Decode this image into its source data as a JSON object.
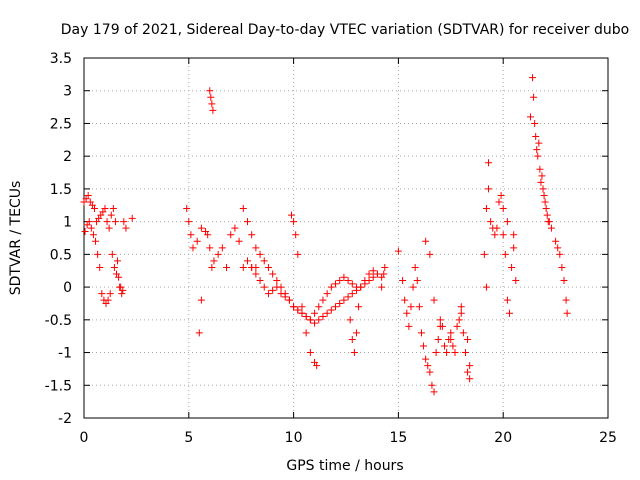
{
  "chart_data": {
    "type": "scatter",
    "title": "Day 179 of 2021, Sidereal Day-to-day VTEC variation (SDTVAR) for receiver dubo",
    "xlabel": "GPS time / hours",
    "ylabel": "SDTVAR / TECUs",
    "xlim": [
      0,
      25
    ],
    "ylim": [
      -2,
      3.5
    ],
    "xticks": [
      "0",
      "5",
      "10",
      "15",
      "20",
      "25"
    ],
    "yticks": [
      "-2",
      "-1.5",
      "-1",
      "-0.5",
      "0",
      "0.5",
      "1",
      "1.5",
      "2",
      "2.5",
      "3",
      "3.5"
    ],
    "grid": true,
    "marker": "+",
    "series": [
      {
        "name": "SDTVAR",
        "color": "#ff0000",
        "x": [
          0.0,
          0.1,
          0.2,
          0.3,
          0.4,
          0.5,
          0.6,
          0.7,
          0.8,
          0.9,
          1.0,
          1.1,
          1.2,
          1.3,
          1.4,
          1.5,
          1.6,
          1.7,
          1.8,
          1.9,
          2.0,
          2.3,
          0.05,
          0.15,
          0.25,
          0.35,
          0.45,
          0.55,
          0.65,
          0.75,
          0.85,
          0.95,
          1.05,
          1.15,
          1.25,
          1.35,
          1.45,
          1.55,
          1.65,
          1.75,
          1.85,
          4.9,
          5.0,
          5.1,
          5.2,
          5.4,
          5.6,
          5.8,
          5.9,
          6.0,
          6.1,
          6.2,
          6.4,
          6.6,
          6.8,
          7.0,
          7.2,
          7.4,
          7.6,
          7.8,
          8.0,
          8.2,
          5.5,
          5.6,
          6.0,
          6.05,
          6.1,
          6.15,
          8.0,
          8.2,
          8.4,
          8.6,
          8.8,
          9.0,
          9.2,
          9.4,
          9.6,
          9.8,
          10.0,
          10.2,
          10.4,
          10.6,
          10.8,
          11.0,
          11.2,
          11.4,
          11.6,
          11.8,
          12.0,
          12.2,
          12.4,
          12.6,
          12.8,
          13.0,
          13.2,
          13.4,
          13.6,
          13.8,
          14.0,
          14.2,
          7.6,
          7.8,
          8.0,
          8.2,
          8.4,
          8.6,
          8.8,
          9.0,
          9.2,
          9.4,
          9.6,
          9.8,
          10.0,
          10.2,
          10.4,
          10.6,
          10.8,
          11.0,
          11.2,
          11.4,
          11.6,
          11.8,
          12.0,
          12.2,
          12.4,
          12.6,
          12.8,
          13.0,
          13.2,
          13.4,
          13.6,
          13.8,
          14.0,
          9.9,
          10.0,
          10.1,
          10.2,
          10.4,
          10.6,
          10.8,
          11.0,
          11.1,
          12.7,
          12.8,
          12.9,
          13.0,
          13.1,
          14.2,
          14.3,
          14.35,
          15.0,
          15.2,
          15.3,
          15.4,
          15.5,
          15.6,
          15.7,
          15.8,
          15.9,
          16.0,
          16.1,
          16.2,
          16.3,
          16.4,
          16.5,
          16.6,
          16.7,
          16.8,
          16.9,
          17.0,
          17.1,
          17.2,
          17.3,
          17.4,
          17.5,
          17.6,
          17.7,
          17.8,
          17.9,
          18.0,
          18.1,
          18.2,
          18.3,
          18.4,
          16.3,
          16.5,
          16.7,
          17.0,
          17.5,
          18.0,
          18.3,
          18.4,
          19.1,
          19.2,
          19.3,
          19.4,
          19.5,
          19.6,
          19.7,
          19.8,
          19.9,
          20.0,
          20.1,
          20.2,
          20.3,
          20.4,
          20.5,
          20.6,
          19.2,
          19.3,
          20.0,
          20.2,
          20.5,
          21.3,
          21.4,
          21.45,
          21.5,
          21.55,
          21.6,
          21.65,
          21.7,
          21.75,
          21.8,
          21.85,
          21.9,
          21.95,
          22.0,
          22.05,
          22.1,
          22.15,
          22.2,
          22.3,
          22.5,
          22.6,
          22.7,
          22.8,
          22.9,
          23.0,
          23.05
        ],
        "y": [
          1.3,
          1.35,
          1.4,
          1.3,
          1.25,
          1.2,
          1.0,
          1.05,
          1.1,
          1.15,
          1.2,
          1.0,
          0.9,
          1.1,
          1.2,
          1.0,
          0.4,
          0.0,
          -0.1,
          1.0,
          0.9,
          1.05,
          0.85,
          0.95,
          1.0,
          0.9,
          0.8,
          0.7,
          0.5,
          0.3,
          -0.1,
          -0.2,
          -0.25,
          -0.2,
          -0.1,
          0.5,
          0.3,
          0.2,
          0.15,
          0.0,
          -0.05,
          1.2,
          1.0,
          0.8,
          0.6,
          0.7,
          0.9,
          0.85,
          0.8,
          0.6,
          0.3,
          0.4,
          0.5,
          0.6,
          0.3,
          0.8,
          0.9,
          0.7,
          0.3,
          0.4,
          0.3,
          0.3,
          -0.7,
          -0.2,
          3.0,
          2.9,
          2.8,
          2.7,
          0.3,
          0.2,
          0.1,
          0.0,
          -0.1,
          -0.05,
          0.0,
          -0.1,
          -0.15,
          -0.2,
          -0.3,
          -0.35,
          -0.4,
          -0.45,
          -0.5,
          -0.4,
          -0.3,
          -0.2,
          -0.1,
          0.0,
          0.05,
          0.1,
          0.15,
          0.1,
          0.05,
          0.0,
          0.0,
          0.1,
          0.2,
          0.25,
          0.2,
          0.15,
          1.2,
          1.0,
          0.8,
          0.6,
          0.5,
          0.4,
          0.3,
          0.2,
          0.1,
          0.0,
          -0.1,
          -0.2,
          -0.3,
          -0.35,
          -0.4,
          -0.45,
          -0.5,
          -0.55,
          -0.5,
          -0.45,
          -0.4,
          -0.35,
          -0.3,
          -0.25,
          -0.2,
          -0.15,
          -0.1,
          -0.05,
          0.0,
          0.05,
          0.1,
          0.15,
          0.2,
          1.1,
          1.0,
          0.8,
          0.5,
          -0.3,
          -0.7,
          -1.0,
          -1.15,
          -1.2,
          -0.5,
          -0.8,
          -1.0,
          -0.7,
          -0.3,
          0.0,
          0.2,
          0.3,
          0.55,
          0.1,
          -0.2,
          -0.4,
          -0.6,
          -0.3,
          0.0,
          0.3,
          0.1,
          -0.3,
          -0.7,
          -0.9,
          -1.1,
          -1.2,
          -1.3,
          -1.5,
          -1.6,
          -1.0,
          -0.8,
          -0.5,
          -0.6,
          -0.9,
          -1.0,
          -0.8,
          -0.7,
          -0.9,
          -1.0,
          -0.6,
          -0.5,
          -0.3,
          -0.7,
          -1.0,
          -1.3,
          -1.4,
          0.7,
          0.5,
          -0.2,
          -0.6,
          -0.8,
          -0.4,
          -0.8,
          -1.2,
          0.5,
          1.2,
          1.9,
          1.0,
          0.9,
          0.8,
          0.9,
          1.3,
          1.4,
          0.8,
          0.5,
          -0.2,
          -0.4,
          0.3,
          0.6,
          0.1,
          0.0,
          1.5,
          1.2,
          1.0,
          0.8,
          2.6,
          3.2,
          2.9,
          2.5,
          2.3,
          2.1,
          2.0,
          2.2,
          1.8,
          1.6,
          1.7,
          1.5,
          1.4,
          1.3,
          1.2,
          1.1,
          1.0,
          1.0,
          0.9,
          0.7,
          0.6,
          0.5,
          0.3,
          0.1,
          -0.2,
          -0.4
        ]
      }
    ]
  }
}
